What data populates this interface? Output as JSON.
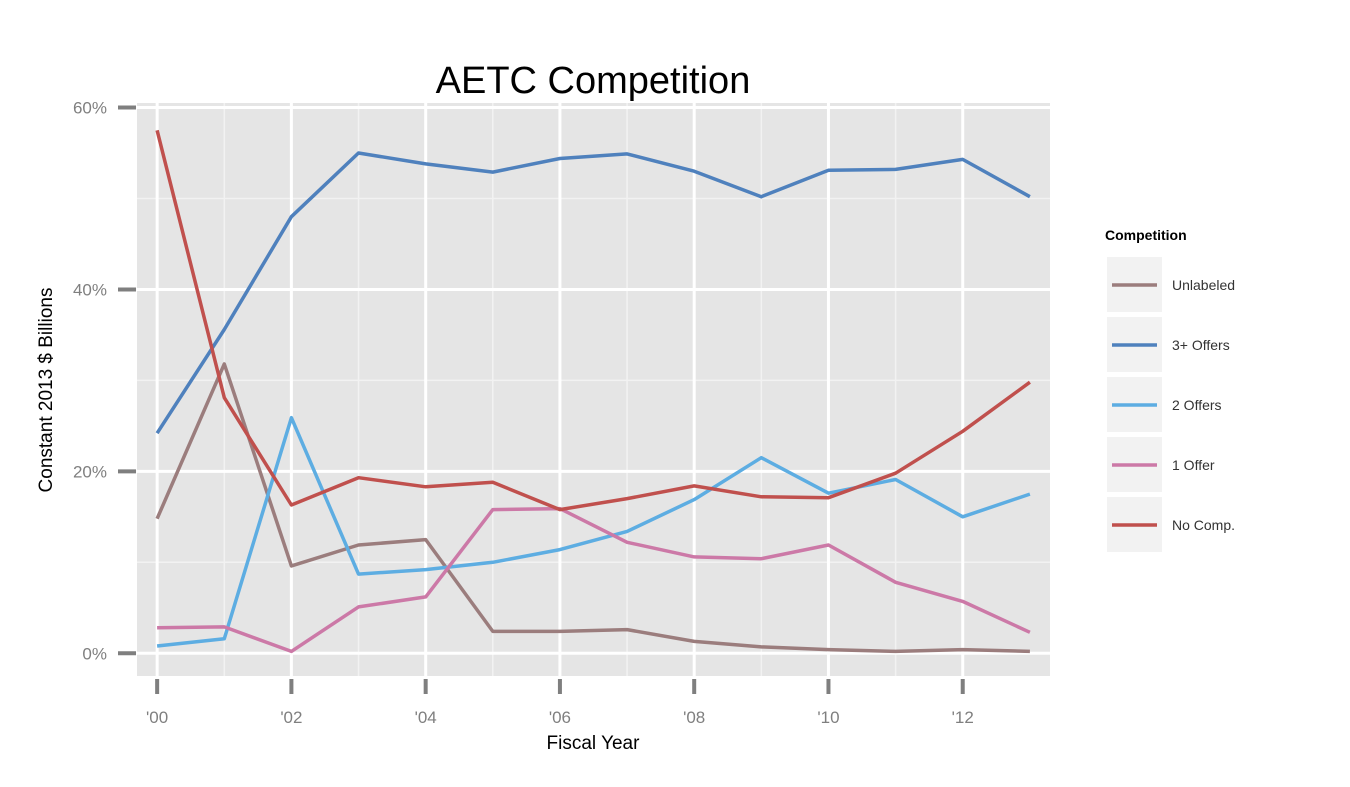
{
  "chart_data": {
    "type": "line",
    "title": "AETC Competition",
    "xlabel": "Fiscal Year",
    "ylabel": "Constant 2013 $ Billions",
    "x": [
      2000,
      2001,
      2002,
      2003,
      2004,
      2005,
      2006,
      2007,
      2008,
      2009,
      2010,
      2011,
      2012,
      2013
    ],
    "xlim": [
      1999.7,
      2013.3
    ],
    "ylim": [
      -2.5,
      60.5
    ],
    "xticks": [
      2000,
      2002,
      2004,
      2006,
      2008,
      2010,
      2012
    ],
    "xtick_labels": [
      "'00",
      "'02",
      "'04",
      "'06",
      "'08",
      "'10",
      "'12"
    ],
    "yticks": [
      0,
      20,
      40,
      60
    ],
    "ytick_labels": [
      "0%",
      "20%",
      "40%",
      "60%"
    ],
    "grid": true,
    "legend": {
      "title": "Competition",
      "position": "right"
    },
    "series": [
      {
        "name": "Unlabeled",
        "color": "#9b7d7d",
        "values": [
          14.8,
          31.8,
          9.6,
          11.9,
          12.5,
          2.4,
          2.4,
          2.6,
          1.3,
          0.7,
          0.4,
          0.2,
          0.4,
          0.2
        ]
      },
      {
        "name": "3+ Offers",
        "color": "#4f81bd",
        "values": [
          24.2,
          35.6,
          48.0,
          55.0,
          53.8,
          52.9,
          54.4,
          54.9,
          53.0,
          50.2,
          53.1,
          53.2,
          54.3,
          50.2
        ]
      },
      {
        "name": "2 Offers",
        "color": "#5dade2",
        "values": [
          0.8,
          1.6,
          25.9,
          8.7,
          9.2,
          10.0,
          11.4,
          13.4,
          16.9,
          21.5,
          17.6,
          19.1,
          15.0,
          17.5
        ]
      },
      {
        "name": "1 Offer",
        "color": "#cc79a7",
        "values": [
          2.8,
          2.9,
          0.2,
          5.1,
          6.2,
          15.8,
          15.9,
          12.2,
          10.6,
          10.4,
          11.9,
          7.8,
          5.7,
          2.3
        ]
      },
      {
        "name": "No Comp.",
        "color": "#c0504d",
        "values": [
          57.5,
          28.1,
          16.3,
          19.3,
          18.3,
          18.8,
          15.8,
          17.0,
          18.4,
          17.2,
          17.1,
          19.8,
          24.4,
          29.8
        ]
      }
    ]
  }
}
